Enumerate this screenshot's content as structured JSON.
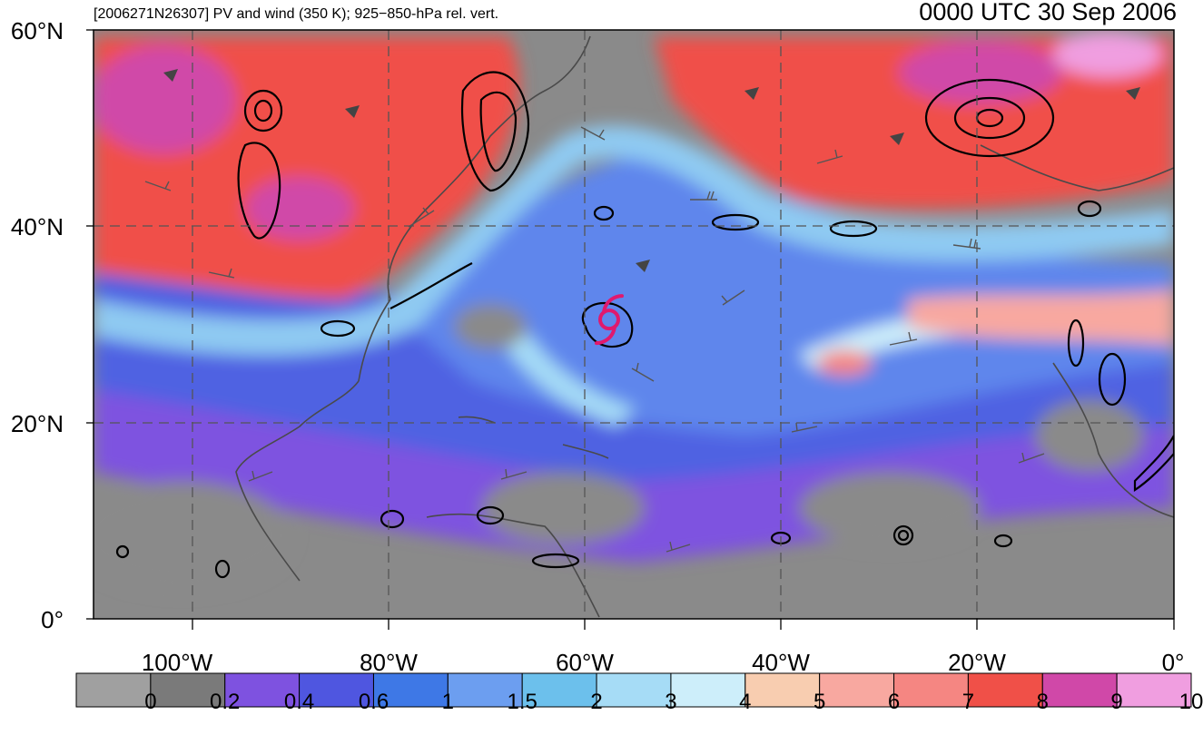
{
  "header": {
    "subtitle": "[2006271N26307] PV and wind (350 K); 925−850-hPa rel. vert.",
    "valid_time": "0000 UTC 30 Sep 2006"
  },
  "map": {
    "lat_labels": [
      "60°N",
      "40°N",
      "20°N",
      "0°"
    ],
    "lon_labels": [
      "100°W",
      "80°W",
      "60°W",
      "40°W",
      "20°W",
      "0°"
    ],
    "storm_symbol": "hurricane-icon",
    "storm_position": {
      "lat": 30.5,
      "lon": -57.5
    }
  },
  "colorbar": {
    "labels": [
      "0",
      "0.2",
      "0.4",
      "0.6",
      "1",
      "1.5",
      "2",
      "3",
      "4",
      "5",
      "6",
      "7",
      "8",
      "9",
      "10"
    ],
    "colors": [
      "#a0a0a0",
      "#7a7a7a",
      "#7e52e0",
      "#4f56e0",
      "#3e78e6",
      "#6c9ef0",
      "#6cc0ec",
      "#a6dcf6",
      "#cdeefa",
      "#f8cdb0",
      "#f8a8a0",
      "#f58682",
      "#f05048",
      "#d048a8",
      "#f09ee0"
    ]
  }
}
